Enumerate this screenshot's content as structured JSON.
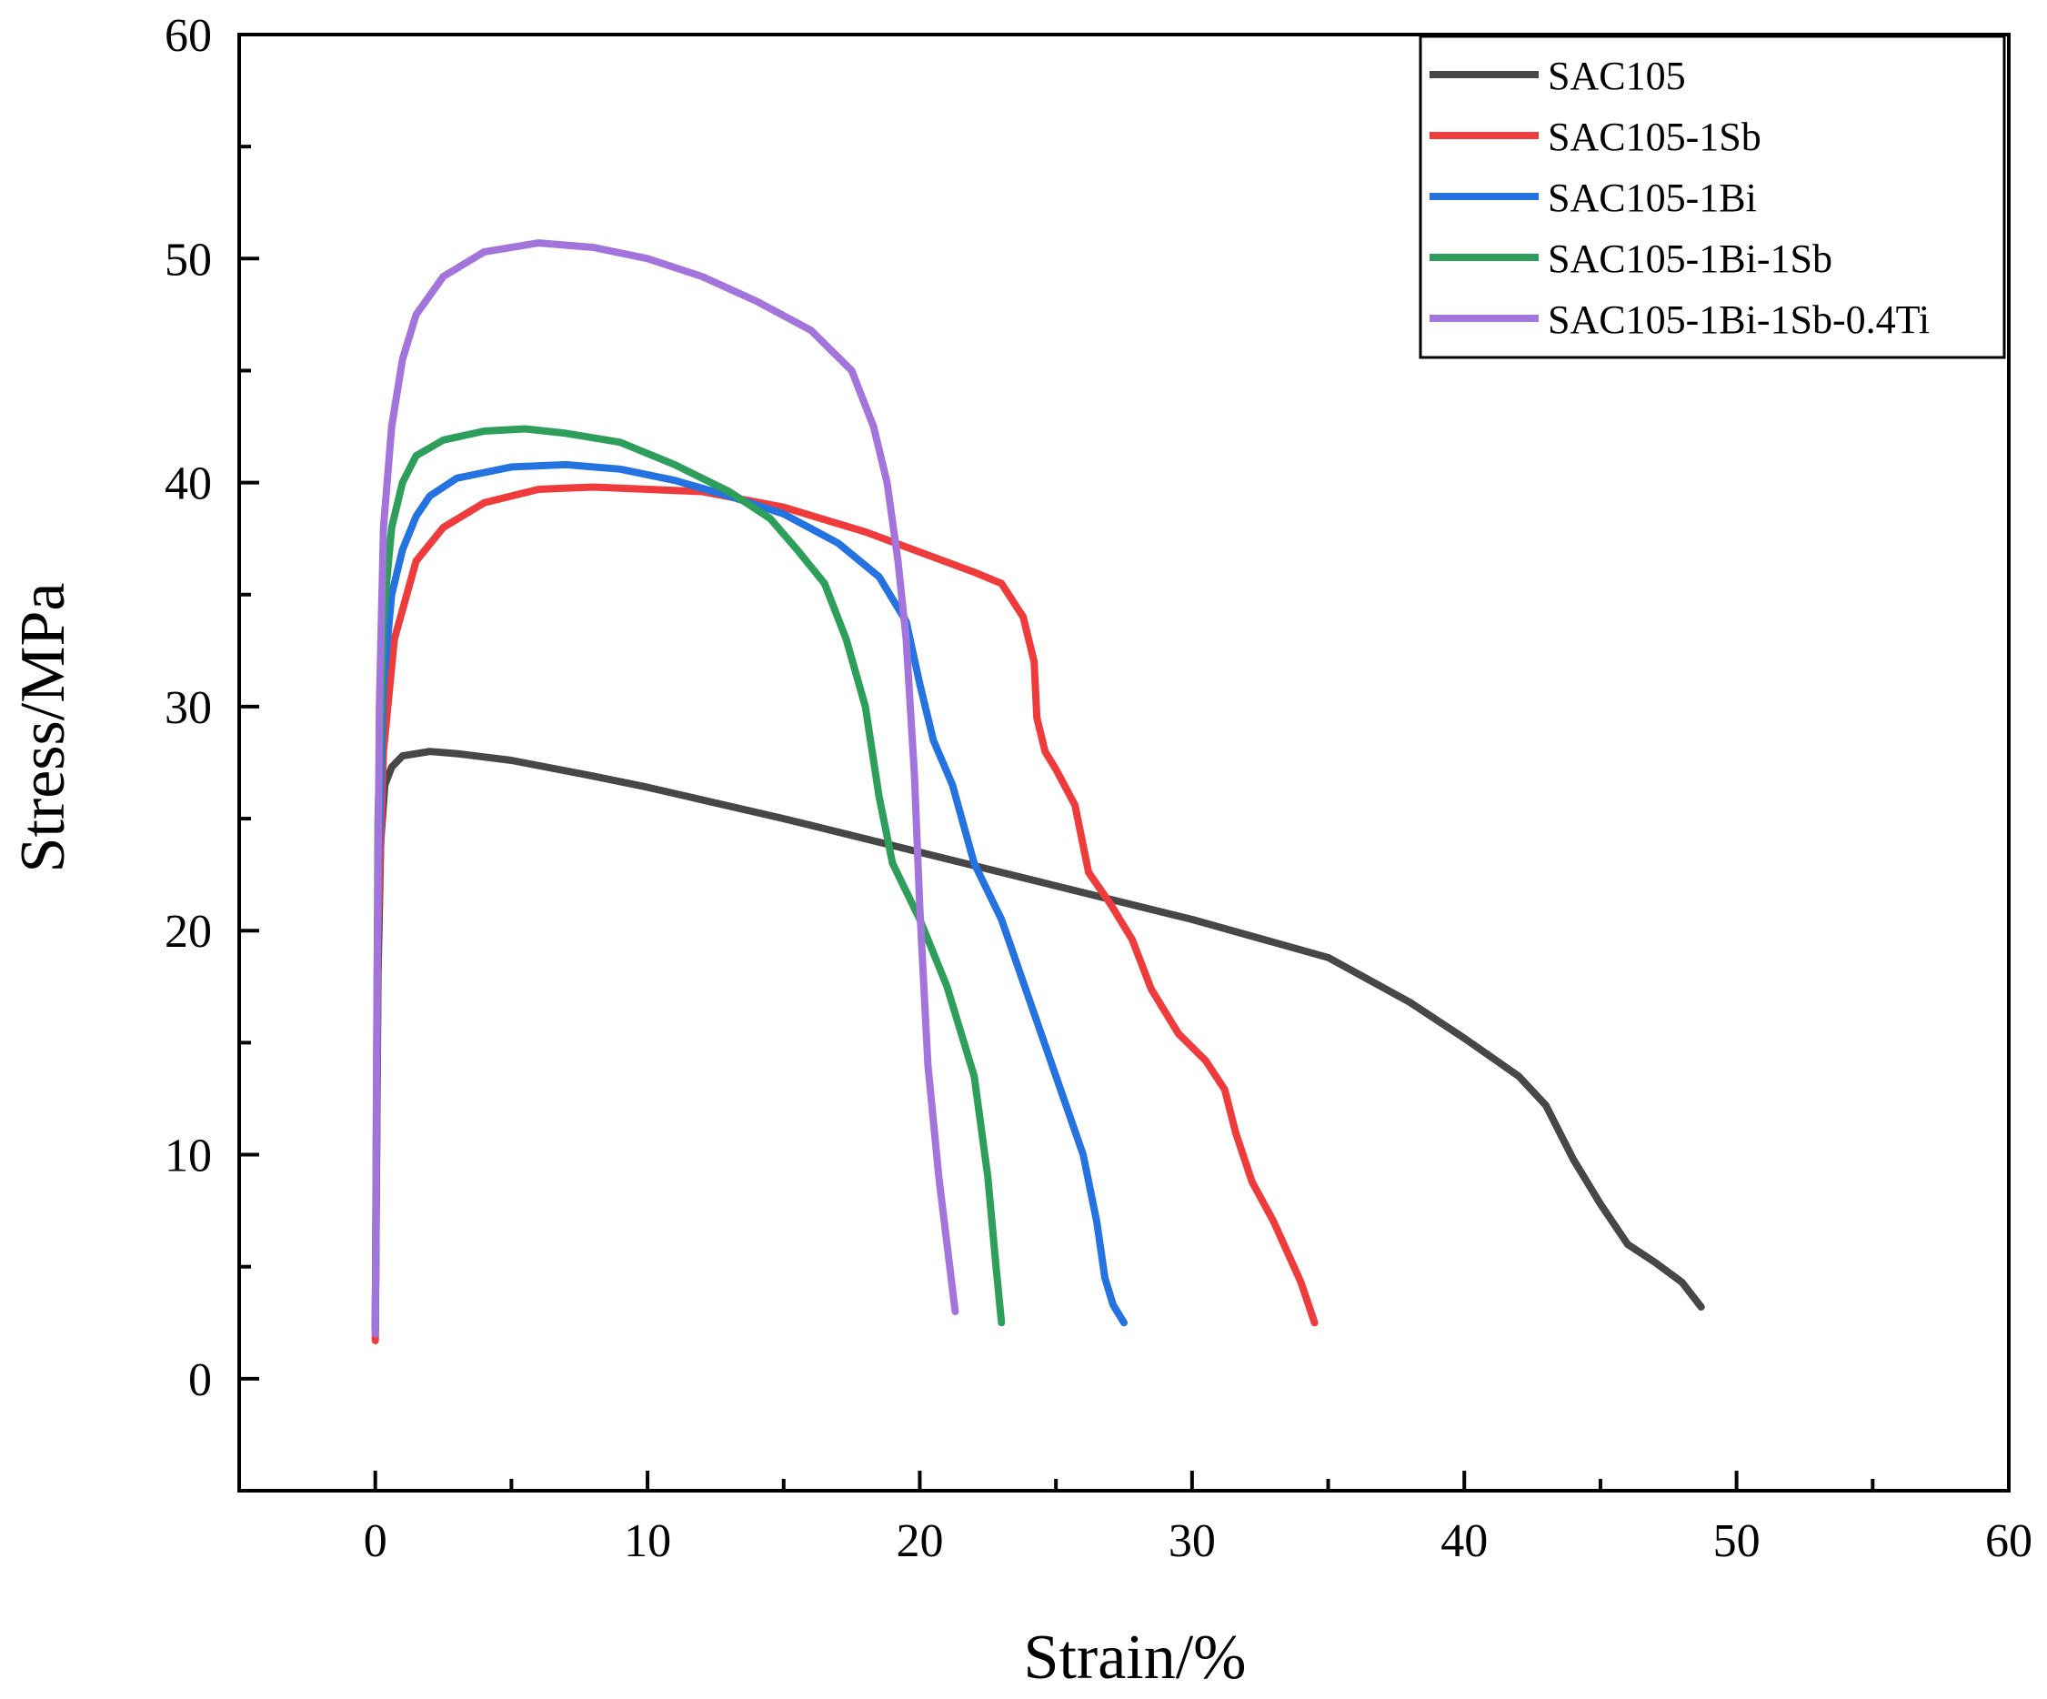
{
  "chart_data": {
    "type": "line",
    "title": "",
    "xlabel": "Strain/%",
    "ylabel": "Stress/MPa",
    "xlim": [
      -5,
      60
    ],
    "ylim": [
      -5,
      60
    ],
    "xticks": [
      0,
      10,
      20,
      30,
      40,
      50,
      60
    ],
    "yticks": [
      0,
      10,
      20,
      30,
      40,
      50,
      60
    ],
    "legend_position": "top-right",
    "series": [
      {
        "name": "SAC105",
        "color": "#474747",
        "points": [
          [
            0,
            2.2
          ],
          [
            0.1,
            18
          ],
          [
            0.2,
            24
          ],
          [
            0.35,
            26.5
          ],
          [
            0.6,
            27.3
          ],
          [
            1.0,
            27.8
          ],
          [
            2.0,
            28.0
          ],
          [
            3.0,
            27.9
          ],
          [
            5.0,
            27.6
          ],
          [
            8.0,
            26.9
          ],
          [
            10.0,
            26.4
          ],
          [
            15.0,
            25.0
          ],
          [
            20.0,
            23.5
          ],
          [
            25.0,
            22.0
          ],
          [
            30.0,
            20.5
          ],
          [
            35.0,
            18.8
          ],
          [
            38.0,
            16.8
          ],
          [
            40.0,
            15.2
          ],
          [
            42.0,
            13.5
          ],
          [
            43.0,
            12.2
          ],
          [
            44.0,
            9.8
          ],
          [
            45.0,
            7.8
          ],
          [
            46.0,
            6.0
          ],
          [
            47.0,
            5.2
          ],
          [
            48.0,
            4.3
          ],
          [
            48.7,
            3.2
          ]
        ]
      },
      {
        "name": "SAC105-1Sb",
        "color": "#ef3b3b",
        "points": [
          [
            0,
            1.7
          ],
          [
            0.1,
            20
          ],
          [
            0.3,
            28
          ],
          [
            0.7,
            33
          ],
          [
            1.5,
            36.5
          ],
          [
            2.5,
            38
          ],
          [
            4.0,
            39.1
          ],
          [
            6.0,
            39.7
          ],
          [
            8.0,
            39.8
          ],
          [
            10.0,
            39.7
          ],
          [
            12.0,
            39.6
          ],
          [
            15.0,
            38.9
          ],
          [
            18.0,
            37.8
          ],
          [
            20.0,
            36.9
          ],
          [
            22.0,
            36.0
          ],
          [
            23.0,
            35.5
          ],
          [
            23.8,
            34.0
          ],
          [
            24.2,
            32.0
          ],
          [
            24.3,
            29.5
          ],
          [
            24.6,
            28.0
          ],
          [
            25.0,
            27.2
          ],
          [
            25.7,
            25.6
          ],
          [
            26.2,
            22.6
          ],
          [
            27.0,
            21.2
          ],
          [
            27.8,
            19.6
          ],
          [
            28.5,
            17.4
          ],
          [
            29.5,
            15.4
          ],
          [
            30.5,
            14.2
          ],
          [
            31.2,
            12.9
          ],
          [
            31.6,
            11.0
          ],
          [
            32.2,
            8.8
          ],
          [
            33.0,
            7.0
          ],
          [
            34.0,
            4.3
          ],
          [
            34.5,
            2.5
          ]
        ]
      },
      {
        "name": "SAC105-1Bi",
        "color": "#2573e0",
        "points": [
          [
            0,
            2.2
          ],
          [
            0.1,
            22
          ],
          [
            0.3,
            31
          ],
          [
            0.6,
            35
          ],
          [
            1.0,
            37
          ],
          [
            1.5,
            38.5
          ],
          [
            2.0,
            39.4
          ],
          [
            3.0,
            40.2
          ],
          [
            5.0,
            40.7
          ],
          [
            7.0,
            40.8
          ],
          [
            9.0,
            40.6
          ],
          [
            11.0,
            40.1
          ],
          [
            13.0,
            39.4
          ],
          [
            15.0,
            38.6
          ],
          [
            17.0,
            37.3
          ],
          [
            18.5,
            35.8
          ],
          [
            19.5,
            33.8
          ],
          [
            20.0,
            31.0
          ],
          [
            20.5,
            28.5
          ],
          [
            21.2,
            26.5
          ],
          [
            22.0,
            23.0
          ],
          [
            23.0,
            20.5
          ],
          [
            24.0,
            17.0
          ],
          [
            25.0,
            13.5
          ],
          [
            26.0,
            10.0
          ],
          [
            26.5,
            7.0
          ],
          [
            26.8,
            4.5
          ],
          [
            27.1,
            3.3
          ],
          [
            27.5,
            2.5
          ]
        ]
      },
      {
        "name": "SAC105-1Bi-1Sb",
        "color": "#2e9e5b",
        "points": [
          [
            0,
            2.2
          ],
          [
            0.1,
            25
          ],
          [
            0.3,
            34
          ],
          [
            0.6,
            38
          ],
          [
            1.0,
            40
          ],
          [
            1.5,
            41.2
          ],
          [
            2.5,
            41.9
          ],
          [
            4.0,
            42.3
          ],
          [
            5.5,
            42.4
          ],
          [
            7.0,
            42.2
          ],
          [
            9.0,
            41.8
          ],
          [
            11.0,
            40.8
          ],
          [
            13.0,
            39.6
          ],
          [
            14.5,
            38.4
          ],
          [
            15.5,
            37.0
          ],
          [
            16.5,
            35.5
          ],
          [
            17.3,
            33.0
          ],
          [
            18.0,
            30.0
          ],
          [
            18.5,
            26.0
          ],
          [
            19.0,
            23.0
          ],
          [
            20.0,
            20.5
          ],
          [
            21.0,
            17.5
          ],
          [
            22.0,
            13.5
          ],
          [
            22.5,
            9.0
          ],
          [
            22.8,
            5.0
          ],
          [
            23.0,
            2.5
          ]
        ]
      },
      {
        "name": "SAC105-1Bi-1Sb-0.4Ti",
        "color": "#a374dc",
        "points": [
          [
            0,
            2.0
          ],
          [
            0.05,
            15
          ],
          [
            0.15,
            30
          ],
          [
            0.3,
            38
          ],
          [
            0.6,
            42.5
          ],
          [
            1.0,
            45.5
          ],
          [
            1.5,
            47.5
          ],
          [
            2.5,
            49.2
          ],
          [
            4.0,
            50.3
          ],
          [
            6.0,
            50.7
          ],
          [
            8.0,
            50.5
          ],
          [
            10.0,
            50.0
          ],
          [
            12.0,
            49.2
          ],
          [
            14.0,
            48.1
          ],
          [
            16.0,
            46.8
          ],
          [
            17.5,
            45.0
          ],
          [
            18.3,
            42.5
          ],
          [
            18.8,
            40.0
          ],
          [
            19.2,
            36.5
          ],
          [
            19.5,
            33.0
          ],
          [
            19.8,
            27.0
          ],
          [
            20.0,
            21.0
          ],
          [
            20.3,
            14.0
          ],
          [
            20.7,
            9.0
          ],
          [
            21.1,
            5.0
          ],
          [
            21.3,
            3.0
          ]
        ]
      }
    ]
  }
}
